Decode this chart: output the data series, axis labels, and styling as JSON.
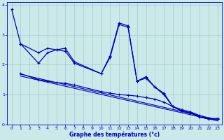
{
  "xlabel": "Graphe des températures (°c)",
  "background_color": "#cce9e9",
  "grid_color": "#aacfcf",
  "line_color": "#0000bb",
  "xlim": [
    -0.5,
    23.5
  ],
  "ylim": [
    0,
    4.1
  ],
  "xticks": [
    0,
    1,
    2,
    3,
    4,
    5,
    6,
    7,
    8,
    9,
    10,
    11,
    12,
    13,
    14,
    15,
    16,
    17,
    18,
    19,
    20,
    21,
    22,
    23
  ],
  "yticks": [
    0,
    1,
    2,
    3,
    4
  ],
  "line1_x": [
    0,
    1,
    3,
    4,
    5,
    6,
    7,
    10,
    11,
    12,
    13,
    14,
    15,
    16,
    17,
    18,
    19,
    20,
    21,
    22,
    23
  ],
  "line1_y": [
    3.85,
    2.7,
    2.4,
    2.55,
    2.5,
    2.55,
    2.1,
    1.7,
    2.3,
    3.4,
    3.3,
    1.45,
    1.6,
    1.25,
    1.05,
    0.6,
    0.45,
    0.4,
    0.25,
    0.2,
    0.2
  ],
  "line2_x": [
    1,
    3,
    4,
    5,
    6,
    7,
    10,
    11,
    12,
    13,
    14,
    15,
    16,
    17,
    18,
    19,
    20,
    21,
    22,
    23
  ],
  "line2_y": [
    2.7,
    2.05,
    2.4,
    2.5,
    2.45,
    2.05,
    1.7,
    2.25,
    3.35,
    3.25,
    1.45,
    1.55,
    1.25,
    1.0,
    0.6,
    0.45,
    0.38,
    0.25,
    0.18,
    0.18
  ],
  "line3_x": [
    1,
    3,
    4,
    5,
    6,
    7,
    10,
    11,
    12,
    13,
    14,
    15,
    16,
    17,
    18,
    19,
    20,
    21,
    22,
    23
  ],
  "line3_y": [
    1.7,
    1.5,
    1.45,
    1.4,
    1.38,
    1.32,
    1.1,
    1.05,
    1.0,
    0.98,
    0.95,
    0.9,
    0.85,
    0.75,
    0.6,
    0.5,
    0.42,
    0.3,
    0.2,
    0.18
  ],
  "line4_x": [
    1,
    23
  ],
  "line4_y": [
    1.68,
    0.16
  ],
  "line5_x": [
    1,
    23
  ],
  "line5_y": [
    1.62,
    0.12
  ]
}
